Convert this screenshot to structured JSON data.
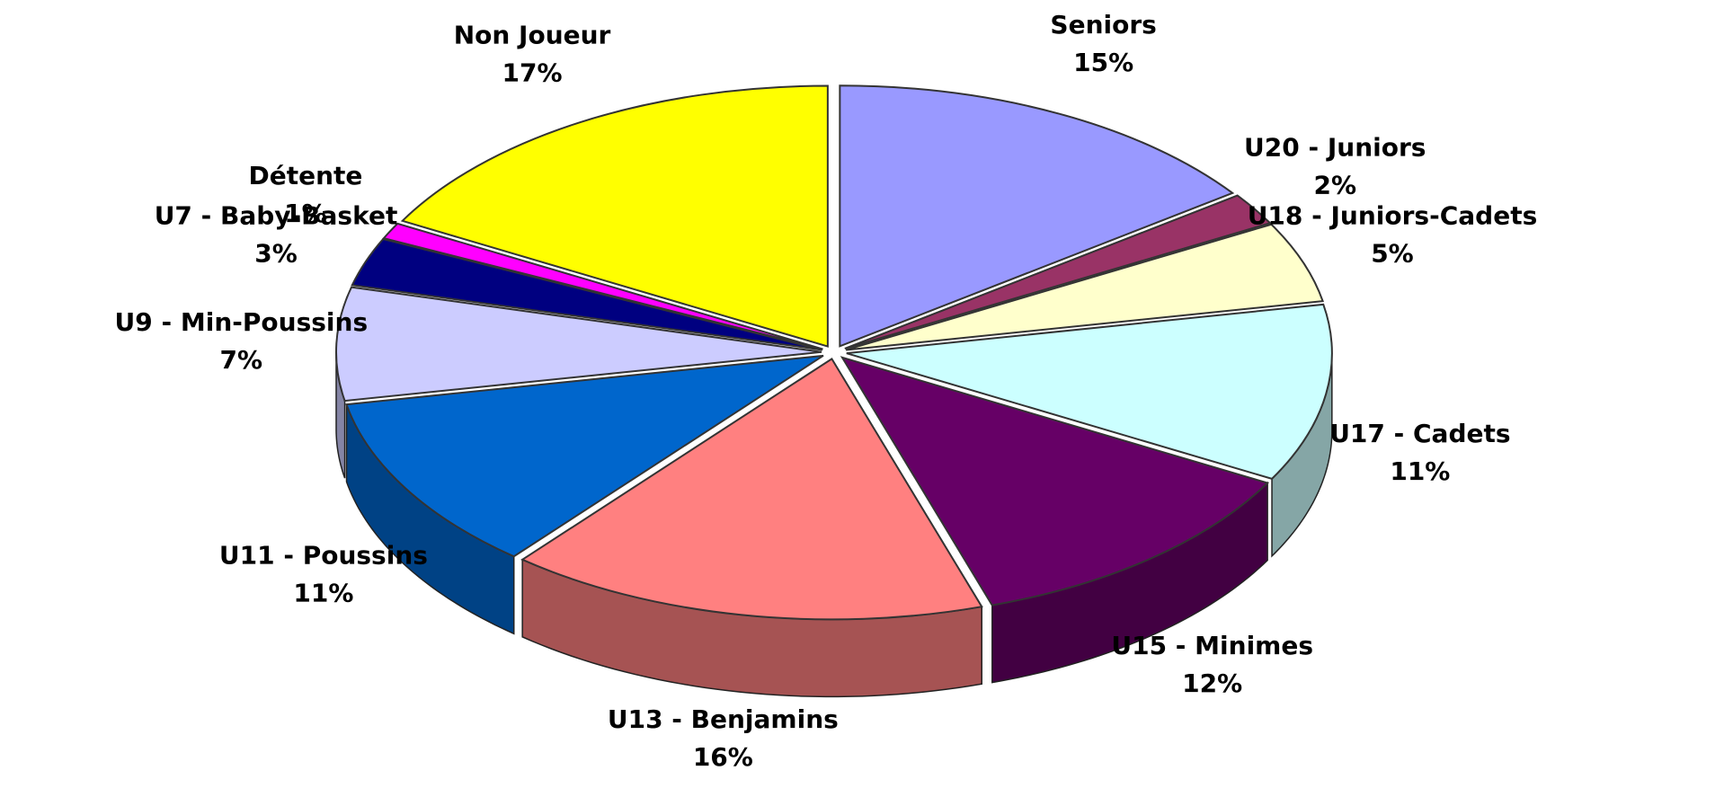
{
  "chart_data": {
    "type": "pie",
    "categories": [
      "Seniors",
      "U20 - Juniors",
      "U18 - Juniors-Cadets",
      "U17 - Cadets",
      "U15 - Minimes",
      "U13 - Benjamins",
      "U11 - Poussins",
      "U9 - Min-Poussins",
      "U7 - Baby-Basket",
      "Détente",
      "Non Joueur"
    ],
    "values": [
      15,
      2,
      5,
      11,
      12,
      16,
      11,
      7,
      3,
      1,
      17
    ],
    "value_labels": [
      "15%",
      "2%",
      "5%",
      "11%",
      "12%",
      "16%",
      "11%",
      "7%",
      "3%",
      "1%",
      "17%"
    ],
    "colors": [
      "#9999ff",
      "#993366",
      "#ffffcc",
      "#ccffff",
      "#660066",
      "#ff8080",
      "#0066cc",
      "#ccccff",
      "#000080",
      "#ff00ff",
      "#ffff00"
    ]
  }
}
